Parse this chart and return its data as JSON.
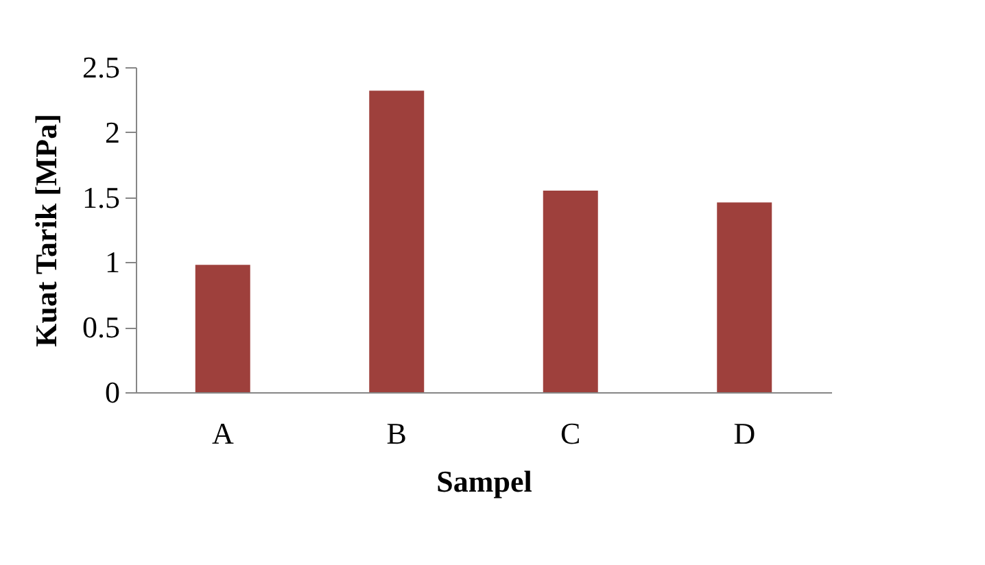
{
  "chart_data": {
    "type": "bar",
    "xlabel": "Sampel",
    "ylabel": "Kuat Tarik  [MPa]",
    "categories": [
      "A",
      "B",
      "C",
      "D"
    ],
    "values": [
      0.98,
      2.32,
      1.55,
      1.46
    ],
    "color": "#9e403c",
    "ylim": [
      0,
      2.5
    ],
    "yticks": [
      0,
      0.5,
      1,
      1.5,
      2,
      2.5
    ],
    "grid": false,
    "legend": false
  }
}
